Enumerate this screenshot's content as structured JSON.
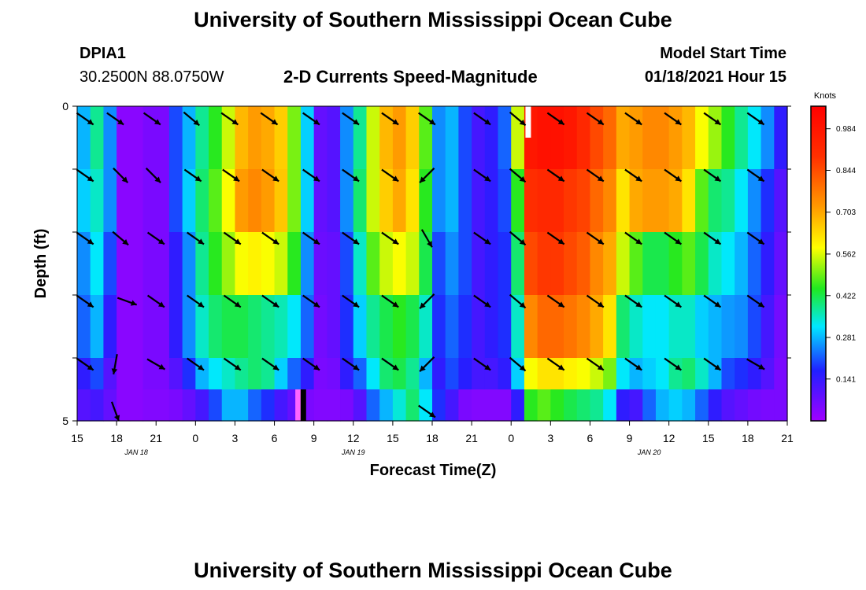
{
  "header": {
    "title": "University of Southern Mississippi Ocean Cube",
    "station_id": "DPIA1",
    "station_coords": "30.2500N 88.0750W",
    "chart_heading": "2-D Currents Speed-Magnitude",
    "model_start_label": "Model Start Time",
    "model_start_value": "01/18/2021 Hour 15"
  },
  "footer": {
    "title": "University of Southern Mississippi Ocean Cube"
  },
  "chart_data": {
    "type": "heatmap",
    "title": "2-D Currents Speed-Magnitude",
    "xlabel": "Forecast Time(Z)",
    "ylabel": "Depth (ft)",
    "x_range_hours": [
      0,
      54
    ],
    "ylim": [
      0,
      5
    ],
    "x_ticks": [
      {
        "h": 0,
        "label": "15"
      },
      {
        "h": 3,
        "label": "18"
      },
      {
        "h": 6,
        "label": "21"
      },
      {
        "h": 9,
        "label": "0"
      },
      {
        "h": 12,
        "label": "3"
      },
      {
        "h": 15,
        "label": "6"
      },
      {
        "h": 18,
        "label": "9"
      },
      {
        "h": 21,
        "label": "12"
      },
      {
        "h": 24,
        "label": "15"
      },
      {
        "h": 27,
        "label": "18"
      },
      {
        "h": 30,
        "label": "21"
      },
      {
        "h": 33,
        "label": "0"
      },
      {
        "h": 36,
        "label": "3"
      },
      {
        "h": 39,
        "label": "6"
      },
      {
        "h": 42,
        "label": "9"
      },
      {
        "h": 45,
        "label": "12"
      },
      {
        "h": 48,
        "label": "15"
      },
      {
        "h": 51,
        "label": "18"
      },
      {
        "h": 54,
        "label": "21"
      }
    ],
    "date_labels": [
      {
        "h": 4.5,
        "label": "JAN 18"
      },
      {
        "h": 21,
        "label": "JAN 19"
      },
      {
        "h": 43.5,
        "label": "JAN 20"
      }
    ],
    "y_ticks": [
      {
        "v": 0,
        "label": "0"
      },
      {
        "v": 5,
        "label": "5"
      }
    ],
    "y_minor_ticks": [
      1,
      2,
      3,
      4
    ],
    "colorbar": {
      "title": "Knots",
      "ticks": [
        "0.984",
        "0.844",
        "0.703",
        "0.562",
        "0.422",
        "0.281",
        "0.141"
      ],
      "tick_values": [
        0.984,
        0.844,
        0.703,
        0.562,
        0.422,
        0.281,
        0.141
      ],
      "vmin": 0.0,
      "vmax": 1.06
    },
    "time_hours": [
      0,
      1,
      2,
      3,
      4,
      5,
      6,
      7,
      8,
      9,
      10,
      11,
      12,
      13,
      14,
      15,
      16,
      17,
      18,
      19,
      20,
      21,
      22,
      23,
      24,
      25,
      26,
      27,
      28,
      29,
      30,
      31,
      32,
      33,
      34,
      35,
      36,
      37,
      38,
      39,
      40,
      41,
      42,
      43,
      44,
      45,
      46,
      47,
      48,
      49,
      50,
      51,
      52,
      53,
      54
    ],
    "depth_layers_ft": [
      0,
      1,
      2,
      3,
      4,
      4.5
    ],
    "speed_knots": [
      [
        0.28,
        0.38,
        0.25,
        0.03,
        0.03,
        0.05,
        0.05,
        0.2,
        0.28,
        0.38,
        0.45,
        0.55,
        0.68,
        0.72,
        0.7,
        0.65,
        0.5,
        0.3,
        0.08,
        0.1,
        0.25,
        0.38,
        0.55,
        0.68,
        0.72,
        0.65,
        0.48,
        0.25,
        0.28,
        0.2,
        0.12,
        0.15,
        0.22,
        0.55,
        0.98,
        1.0,
        1.0,
        0.98,
        0.92,
        0.85,
        0.8,
        0.7,
        0.72,
        0.75,
        0.75,
        0.72,
        0.68,
        0.58,
        0.52,
        0.45,
        0.38,
        0.32,
        0.25,
        0.15,
        0.25
      ],
      [
        0.3,
        0.35,
        0.25,
        0.03,
        0.03,
        0.05,
        0.05,
        0.2,
        0.3,
        0.4,
        0.48,
        0.58,
        0.72,
        0.75,
        0.72,
        0.66,
        0.5,
        0.3,
        0.08,
        0.1,
        0.25,
        0.4,
        0.55,
        0.65,
        0.7,
        0.62,
        0.45,
        0.25,
        0.28,
        0.2,
        0.12,
        0.15,
        0.2,
        0.45,
        0.9,
        0.92,
        0.92,
        0.88,
        0.86,
        0.8,
        0.75,
        0.62,
        0.7,
        0.72,
        0.72,
        0.7,
        0.62,
        0.48,
        0.4,
        0.38,
        0.32,
        0.25,
        0.18,
        0.1,
        0.2
      ],
      [
        0.25,
        0.32,
        0.2,
        0.03,
        0.03,
        0.05,
        0.05,
        0.15,
        0.25,
        0.38,
        0.45,
        0.52,
        0.58,
        0.6,
        0.58,
        0.55,
        0.45,
        0.25,
        0.07,
        0.08,
        0.2,
        0.35,
        0.48,
        0.55,
        0.58,
        0.55,
        0.42,
        0.2,
        0.25,
        0.2,
        0.12,
        0.15,
        0.18,
        0.4,
        0.85,
        0.88,
        0.88,
        0.85,
        0.82,
        0.75,
        0.7,
        0.55,
        0.48,
        0.42,
        0.42,
        0.45,
        0.48,
        0.42,
        0.35,
        0.32,
        0.28,
        0.22,
        0.15,
        0.08,
        0.15
      ],
      [
        0.22,
        0.28,
        0.15,
        0.03,
        0.03,
        0.05,
        0.05,
        0.15,
        0.25,
        0.35,
        0.4,
        0.42,
        0.42,
        0.4,
        0.38,
        0.36,
        0.32,
        0.22,
        0.06,
        0.08,
        0.18,
        0.3,
        0.38,
        0.42,
        0.45,
        0.42,
        0.35,
        0.18,
        0.22,
        0.18,
        0.12,
        0.15,
        0.18,
        0.35,
        0.75,
        0.8,
        0.8,
        0.78,
        0.75,
        0.7,
        0.62,
        0.4,
        0.35,
        0.32,
        0.32,
        0.35,
        0.35,
        0.3,
        0.28,
        0.26,
        0.25,
        0.2,
        0.12,
        0.06,
        0.12
      ],
      [
        0.15,
        0.2,
        0.1,
        0.03,
        0.03,
        0.05,
        0.05,
        0.1,
        0.18,
        0.28,
        0.32,
        0.35,
        0.38,
        0.4,
        0.38,
        0.3,
        0.22,
        0.15,
        0.05,
        0.06,
        0.15,
        0.22,
        0.32,
        0.4,
        0.42,
        0.38,
        0.28,
        0.15,
        0.2,
        0.16,
        0.12,
        0.12,
        0.15,
        0.3,
        0.58,
        0.62,
        0.62,
        0.6,
        0.58,
        0.55,
        0.5,
        0.32,
        0.28,
        0.3,
        0.32,
        0.38,
        0.4,
        0.35,
        0.28,
        0.2,
        0.18,
        0.15,
        0.1,
        0.05,
        0.1
      ],
      [
        0.1,
        0.12,
        0.08,
        0.03,
        0.03,
        0.04,
        0.04,
        0.05,
        0.08,
        0.12,
        0.2,
        0.28,
        0.28,
        0.22,
        0.18,
        0.12,
        0.08,
        0.05,
        0.04,
        0.04,
        0.05,
        0.1,
        0.22,
        0.28,
        0.34,
        0.4,
        0.32,
        0.18,
        0.12,
        0.05,
        0.04,
        0.04,
        0.04,
        0.15,
        0.45,
        0.48,
        0.45,
        0.42,
        0.4,
        0.38,
        0.32,
        0.15,
        0.12,
        0.22,
        0.28,
        0.3,
        0.28,
        0.22,
        0.15,
        0.1,
        0.08,
        0.06,
        0.05,
        0.05,
        0.08
      ]
    ],
    "vector_rows_ft": [
      0.2,
      1.1,
      2.1,
      3.1,
      4.1,
      4.85
    ],
    "vectors": [
      {
        "d": 0.2,
        "items": [
          [
            0.6,
            -35
          ],
          [
            2.9,
            -35
          ],
          [
            5.7,
            -35
          ],
          [
            8.7,
            -40
          ],
          [
            11.6,
            -35
          ],
          [
            14.6,
            -35
          ],
          [
            17.8,
            -35
          ],
          [
            20.8,
            -35
          ],
          [
            23.8,
            -35
          ],
          [
            26.6,
            -35
          ],
          [
            30.8,
            -35
          ],
          [
            33.5,
            -40
          ],
          [
            36.4,
            -35
          ],
          [
            39.4,
            -35
          ],
          [
            42.3,
            -35
          ],
          [
            45.3,
            -35
          ],
          [
            48.3,
            -35
          ],
          [
            51.6,
            -35
          ]
        ]
      },
      {
        "d": 1.1,
        "items": [
          [
            0.6,
            -35
          ],
          [
            3.3,
            -45
          ],
          [
            5.8,
            -45
          ],
          [
            8.8,
            -35
          ],
          [
            11.7,
            -35
          ],
          [
            14.7,
            -35
          ],
          [
            17.8,
            -35
          ],
          [
            20.8,
            -35
          ],
          [
            23.8,
            -35
          ],
          [
            26.6,
            -135
          ],
          [
            30.8,
            -35
          ],
          [
            33.5,
            -40
          ],
          [
            36.4,
            -35
          ],
          [
            39.4,
            -35
          ],
          [
            42.3,
            -35
          ],
          [
            45.3,
            -35
          ],
          [
            48.3,
            -35
          ],
          [
            51.6,
            -35
          ]
        ]
      },
      {
        "d": 2.1,
        "items": [
          [
            0.6,
            -35
          ],
          [
            3.3,
            -40
          ],
          [
            6.0,
            -35
          ],
          [
            9.0,
            -35
          ],
          [
            11.8,
            -35
          ],
          [
            14.7,
            -35
          ],
          [
            17.8,
            -35
          ],
          [
            20.8,
            -35
          ],
          [
            23.8,
            -35
          ],
          [
            26.6,
            -60
          ],
          [
            30.8,
            -35
          ],
          [
            33.5,
            -40
          ],
          [
            36.4,
            -35
          ],
          [
            39.4,
            -35
          ],
          [
            42.3,
            -35
          ],
          [
            45.3,
            -35
          ],
          [
            48.3,
            -35
          ],
          [
            51.6,
            -35
          ]
        ]
      },
      {
        "d": 3.1,
        "items": [
          [
            0.6,
            -35
          ],
          [
            3.8,
            -20
          ],
          [
            6.0,
            -35
          ],
          [
            9.0,
            -35
          ],
          [
            11.8,
            -35
          ],
          [
            14.7,
            -35
          ],
          [
            17.8,
            -35
          ],
          [
            20.8,
            -35
          ],
          [
            23.8,
            -35
          ],
          [
            26.6,
            -135
          ],
          [
            30.8,
            -35
          ],
          [
            33.5,
            -40
          ],
          [
            36.4,
            -35
          ],
          [
            39.4,
            -35
          ],
          [
            42.3,
            -35
          ],
          [
            45.3,
            -35
          ],
          [
            48.3,
            -35
          ],
          [
            51.6,
            -35
          ]
        ]
      },
      {
        "d": 4.1,
        "items": [
          [
            0.6,
            -35
          ],
          [
            2.9,
            -100
          ],
          [
            6.0,
            -30
          ],
          [
            9.0,
            -35
          ],
          [
            11.8,
            -35
          ],
          [
            14.7,
            -35
          ],
          [
            17.8,
            -35
          ],
          [
            20.8,
            -35
          ],
          [
            23.8,
            -35
          ],
          [
            26.6,
            -135
          ],
          [
            30.8,
            -35
          ],
          [
            33.5,
            -40
          ],
          [
            36.4,
            -35
          ],
          [
            39.4,
            -35
          ],
          [
            42.3,
            -35
          ],
          [
            45.3,
            -35
          ],
          [
            48.3,
            -35
          ],
          [
            51.6,
            -30
          ]
        ]
      },
      {
        "d": 4.85,
        "items": [
          [
            2.9,
            -70
          ],
          [
            26.6,
            -35
          ]
        ]
      }
    ],
    "marks": [
      {
        "h": 34.3,
        "depth_top": 0,
        "depth_bottom": 0.5,
        "color": "#ffffff"
      },
      {
        "h": 16.8,
        "depth_top": 4.5,
        "depth_bottom": 5,
        "color": "#ff66ff"
      },
      {
        "h": 17.2,
        "depth_top": 4.5,
        "depth_bottom": 5,
        "color": "#000000"
      }
    ]
  }
}
